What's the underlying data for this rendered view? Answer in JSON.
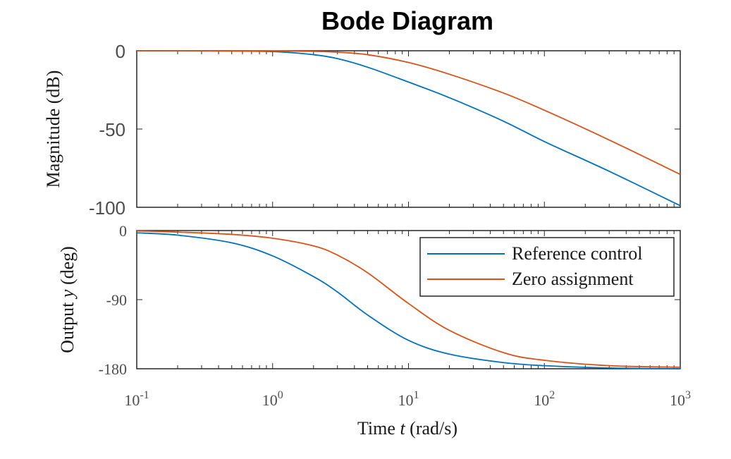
{
  "chart_data": {
    "type": "line",
    "title": "Bode Diagram",
    "x_scale": "log",
    "xlim": [
      0.1,
      1000
    ],
    "xlabel": {
      "pre": "Time ",
      "var": "t",
      "post": " (rad/s)"
    },
    "x_ticks": [
      {
        "base": "10",
        "exp": "-1",
        "value": 0.1
      },
      {
        "base": "10",
        "exp": "0",
        "value": 1
      },
      {
        "base": "10",
        "exp": "1",
        "value": 10
      },
      {
        "base": "10",
        "exp": "2",
        "value": 100
      },
      {
        "base": "10",
        "exp": "3",
        "value": 1000
      }
    ],
    "magnitude": {
      "ylabel": "Magnitude (dB)",
      "ylim": [
        -100,
        0
      ],
      "y_ticks": [
        "0",
        "-50",
        "-100"
      ],
      "y_tick_values": [
        0,
        -50,
        -100
      ],
      "series": [
        {
          "name": "Reference control",
          "color": "#0072bd",
          "x": [
            0.1,
            0.3,
            1,
            2,
            3,
            5,
            10,
            20,
            50,
            100,
            300,
            1000
          ],
          "y": [
            0,
            -0.1,
            -0.5,
            -2.5,
            -5,
            -10.5,
            -20,
            -30,
            -45,
            -58,
            -77,
            -99
          ]
        },
        {
          "name": "Zero assignment",
          "color": "#d95319",
          "x": [
            0.1,
            0.3,
            1,
            2,
            3,
            5,
            10,
            20,
            50,
            100,
            300,
            1000
          ],
          "y": [
            0,
            0,
            -0.1,
            -0.4,
            -0.9,
            -2.5,
            -7.5,
            -15,
            -27,
            -38,
            -57,
            -79
          ]
        }
      ]
    },
    "phase": {
      "ylabel": {
        "pre": "Output ",
        "var": "y",
        "post": " (deg)"
      },
      "ylim": [
        -180,
        0
      ],
      "y_ticks": [
        "0",
        "-90",
        "-180"
      ],
      "y_tick_values": [
        0,
        -90,
        -180
      ],
      "series": [
        {
          "name": "Reference control",
          "color": "#0072bd",
          "x": [
            0.1,
            0.2,
            0.5,
            1,
            2,
            3,
            5,
            10,
            20,
            50,
            100,
            300,
            1000
          ],
          "y": [
            -3,
            -6,
            -16,
            -33,
            -60,
            -80,
            -110,
            -143,
            -161,
            -172,
            -176,
            -179,
            -180
          ]
        },
        {
          "name": "Zero assignment",
          "color": "#d95319",
          "x": [
            0.1,
            0.2,
            0.5,
            1,
            2,
            3,
            5,
            10,
            20,
            50,
            100,
            300,
            1000
          ],
          "y": [
            -0.5,
            -2,
            -5,
            -10,
            -20,
            -32,
            -55,
            -95,
            -130,
            -159,
            -169,
            -176,
            -178
          ]
        }
      ]
    },
    "legend": {
      "placement": "top-right of phase plot",
      "entries": [
        "Reference control",
        "Zero assignment"
      ]
    }
  }
}
